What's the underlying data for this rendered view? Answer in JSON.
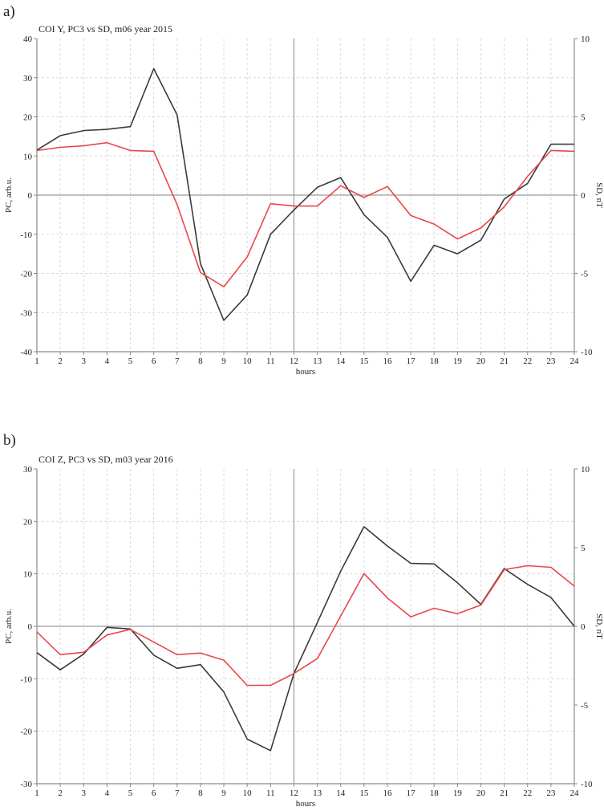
{
  "panels": [
    {
      "label": "a)",
      "title": "COI Y, PC3 vs SD, m06 year 2015",
      "xlabel": "hours",
      "ylabel_left": "PC, arb.u.",
      "ylabel_right": "SD, nT"
    },
    {
      "label": "b)",
      "title": "COI Z, PC3 vs SD, m03 year 2016",
      "xlabel": "hours",
      "ylabel_left": "PC, arb.u.",
      "ylabel_right": "SD, nT"
    }
  ],
  "chart_data": [
    {
      "type": "line",
      "title": "COI Y, PC3 vs SD, m06 year 2015",
      "xlabel": "hours",
      "ylabel": "PC, arb.u.",
      "ylabel_right": "SD, nT",
      "x": [
        1,
        2,
        3,
        4,
        5,
        6,
        7,
        8,
        9,
        10,
        11,
        12,
        13,
        14,
        15,
        16,
        17,
        18,
        19,
        20,
        21,
        22,
        23,
        24
      ],
      "xlim": [
        1,
        24
      ],
      "ylim": [
        -40,
        40
      ],
      "ylim_right": [
        -10,
        10
      ],
      "yticks": [
        -40,
        -30,
        -20,
        -10,
        0,
        10,
        20,
        30,
        40
      ],
      "yticks_right": [
        -10,
        -5,
        0,
        5,
        10
      ],
      "grid": true,
      "colors": {
        "pc": "#3a3a3a",
        "sd": "#e8474b",
        "axis": "#8a8a8a",
        "grid": "#d9d9d9"
      },
      "series": [
        {
          "axis": "left",
          "color": "#3a3a3a",
          "values": [
            11.5,
            15.2,
            16.5,
            16.8,
            17.5,
            32.3,
            20.5,
            -17.5,
            -32,
            -25.5,
            -10,
            -3.8,
            2,
            4.5,
            -5,
            -10.8,
            -22,
            -12.8,
            -15,
            -11.5,
            -1,
            3,
            13,
            13
          ]
        },
        {
          "axis": "right",
          "color": "#e8474b",
          "values": [
            2.85,
            3.05,
            3.15,
            3.35,
            2.85,
            2.8,
            -0.6,
            -4.95,
            -5.85,
            -3.95,
            -0.55,
            -0.7,
            -0.7,
            0.6,
            -0.15,
            0.55,
            -1.3,
            -1.85,
            -2.8,
            -2.1,
            -0.75,
            1.2,
            2.85,
            2.8
          ]
        }
      ]
    },
    {
      "type": "line",
      "title": "COI Z, PC3 vs SD, m03 year 2016",
      "xlabel": "hours",
      "ylabel": "PC, arb.u.",
      "ylabel_right": "SD, nT",
      "x": [
        1,
        2,
        3,
        4,
        5,
        6,
        7,
        8,
        9,
        10,
        11,
        12,
        13,
        14,
        15,
        16,
        17,
        18,
        19,
        20,
        21,
        22,
        23,
        24
      ],
      "xlim": [
        1,
        24
      ],
      "ylim": [
        -30,
        30
      ],
      "ylim_right": [
        -10,
        10
      ],
      "yticks": [
        -30,
        -20,
        -10,
        0,
        10,
        20,
        30
      ],
      "yticks_right": [
        -10,
        -5,
        0,
        5,
        10
      ],
      "grid": true,
      "colors": {
        "pc": "#3a3a3a",
        "sd": "#e8474b",
        "axis": "#8a8a8a",
        "grid": "#d9d9d9"
      },
      "series": [
        {
          "axis": "left",
          "color": "#3a3a3a",
          "values": [
            -5,
            -8.3,
            -5.3,
            -0.2,
            -0.5,
            -5.5,
            -8,
            -7.3,
            -12.5,
            -21.5,
            -23.7,
            -9,
            0.7,
            10.5,
            19,
            15.3,
            12,
            11.9,
            8.3,
            4.2,
            11,
            8,
            5.5,
            0
          ]
        },
        {
          "axis": "right",
          "color": "#e8474b",
          "values": [
            -0.35,
            -1.8,
            -1.65,
            -0.55,
            -0.2,
            -1,
            -1.8,
            -1.7,
            -2.15,
            -3.75,
            -3.75,
            -3,
            -2.05,
            0.65,
            3.35,
            1.8,
            0.6,
            1.15,
            0.8,
            1.35,
            3.6,
            3.85,
            3.75,
            2.55
          ]
        }
      ]
    }
  ]
}
